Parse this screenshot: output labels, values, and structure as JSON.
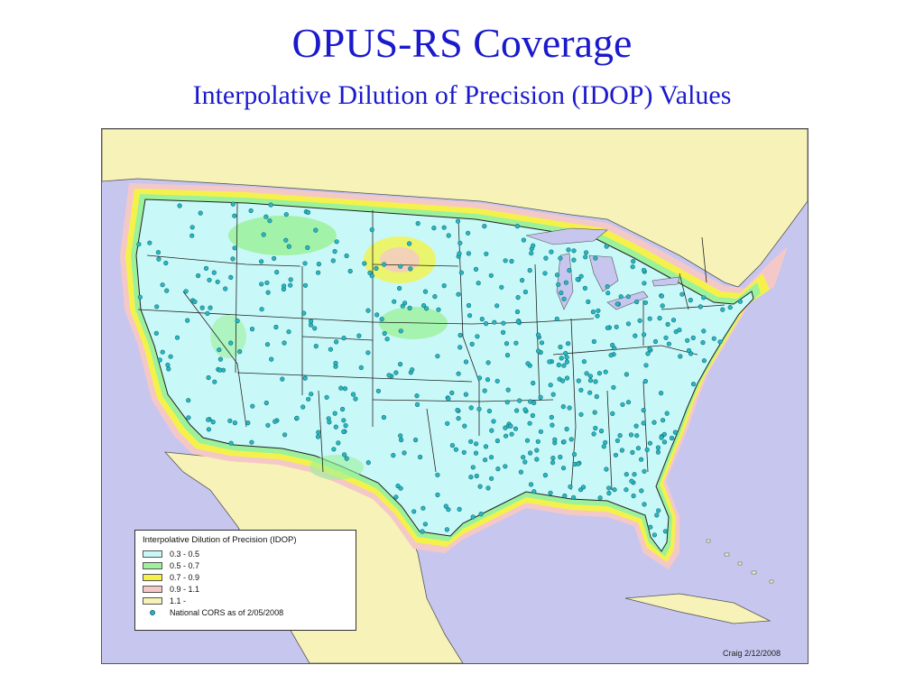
{
  "slide": {
    "title": "OPUS-RS Coverage",
    "subtitle": "Interpolative Dilution of Precision (IDOP) Values"
  },
  "map": {
    "region": "contiguous United States",
    "credit": "Craig 2/12/2008",
    "colors": {
      "water": "#c7c6ef",
      "land_outside": "#f6f2b8",
      "idop_0_3_0_5": "#c9f8f8",
      "idop_0_5_0_7": "#9cf19c",
      "idop_0_7_0_9": "#f4f24a",
      "idop_0_9_1_1": "#f5c8c8",
      "idop_1_1": "#f6f2b8",
      "cors_dot": "#2ab7c2"
    }
  },
  "legend": {
    "title": "Interpolative Dilution of Precision (IDOP)",
    "items": [
      {
        "label": "0.3 - 0.5",
        "color": "#c9f8f8"
      },
      {
        "label": "0.5 - 0.7",
        "color": "#9cf19c"
      },
      {
        "label": "0.7 - 0.9",
        "color": "#f4f24a"
      },
      {
        "label": "0.9 - 1.1",
        "color": "#f5c8c8"
      },
      {
        "label": "1.1 -",
        "color": "#f6f2b8"
      }
    ],
    "stations_label": "National CORS as of 2/05/2008"
  }
}
